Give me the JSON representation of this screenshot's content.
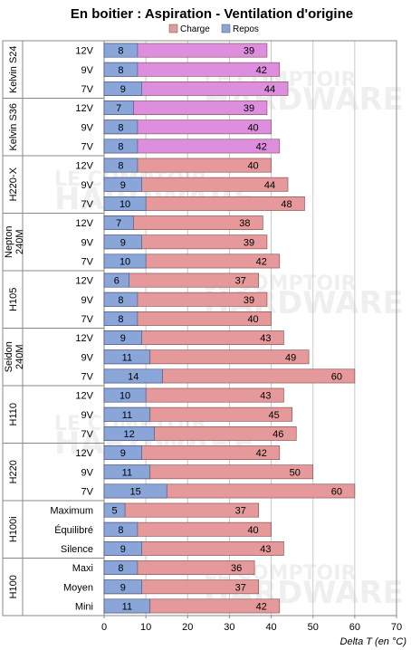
{
  "chart_data": {
    "type": "bar",
    "orientation": "horizontal",
    "title": "En boitier : Aspiration - Ventilation d'origine",
    "xlabel": "Delta T (en °C)",
    "xlim": [
      0,
      70
    ],
    "xticks": [
      0,
      10,
      20,
      30,
      40,
      50,
      60,
      70
    ],
    "grid": true,
    "legend": {
      "position": "top",
      "entries": [
        {
          "name": "Charge",
          "color": "#e6999b"
        },
        {
          "name": "Repos",
          "color": "#8aa5d8"
        }
      ]
    },
    "colors": {
      "charge": "#e6999b",
      "charge_kelvin": "#dd8fdd",
      "repos": "#8aa5d8",
      "grid": "#c8c8c8"
    },
    "groups": [
      {
        "name": "Kelvin S24",
        "highlight": true,
        "rows": [
          {
            "label": "12V",
            "repos": 8,
            "charge": 39
          },
          {
            "label": "9V",
            "repos": 8,
            "charge": 42
          },
          {
            "label": "7V",
            "repos": 9,
            "charge": 44
          }
        ]
      },
      {
        "name": "Kelvin S36",
        "highlight": true,
        "rows": [
          {
            "label": "12V",
            "repos": 7,
            "charge": 39
          },
          {
            "label": "9V",
            "repos": 8,
            "charge": 40
          },
          {
            "label": "7V",
            "repos": 8,
            "charge": 42
          }
        ]
      },
      {
        "name": "H220-X",
        "rows": [
          {
            "label": "12V",
            "repos": 8,
            "charge": 40
          },
          {
            "label": "9V",
            "repos": 9,
            "charge": 44
          },
          {
            "label": "7V",
            "repos": 10,
            "charge": 48
          }
        ]
      },
      {
        "name": "Nepton 240M",
        "name_lines": [
          "Nepton",
          "240M"
        ],
        "rows": [
          {
            "label": "12V",
            "repos": 7,
            "charge": 38
          },
          {
            "label": "9V",
            "repos": 9,
            "charge": 39
          },
          {
            "label": "7V",
            "repos": 10,
            "charge": 42
          }
        ]
      },
      {
        "name": "H105",
        "rows": [
          {
            "label": "12V",
            "repos": 6,
            "charge": 37
          },
          {
            "label": "9V",
            "repos": 8,
            "charge": 39
          },
          {
            "label": "7V",
            "repos": 8,
            "charge": 40
          }
        ]
      },
      {
        "name": "Seidon 240M",
        "name_lines": [
          "Seidon",
          "240M"
        ],
        "rows": [
          {
            "label": "12V",
            "repos": 9,
            "charge": 43
          },
          {
            "label": "9V",
            "repos": 11,
            "charge": 49
          },
          {
            "label": "7V",
            "repos": 14,
            "charge": 60
          }
        ]
      },
      {
        "name": "H110",
        "rows": [
          {
            "label": "12V",
            "repos": 10,
            "charge": 43
          },
          {
            "label": "9V",
            "repos": 11,
            "charge": 45
          },
          {
            "label": "7V",
            "repos": 12,
            "charge": 46
          }
        ]
      },
      {
        "name": "H220",
        "rows": [
          {
            "label": "12V",
            "repos": 9,
            "charge": 42
          },
          {
            "label": "9V",
            "repos": 11,
            "charge": 50
          },
          {
            "label": "7V",
            "repos": 15,
            "charge": 60
          }
        ]
      },
      {
        "name": "H100i",
        "rows": [
          {
            "label": "Maximum",
            "repos": 5,
            "charge": 37
          },
          {
            "label": "Équilibré",
            "repos": 8,
            "charge": 40
          },
          {
            "label": "Silence",
            "repos": 9,
            "charge": 43
          }
        ]
      },
      {
        "name": "H100",
        "rows": [
          {
            "label": "Maxi",
            "repos": 8,
            "charge": 36
          },
          {
            "label": "Moyen",
            "repos": 9,
            "charge": 37
          },
          {
            "label": "Mini",
            "repos": 11,
            "charge": 42
          }
        ]
      }
    ],
    "watermark_text": [
      "LE COMPTOIR",
      "HARDWARE"
    ]
  }
}
